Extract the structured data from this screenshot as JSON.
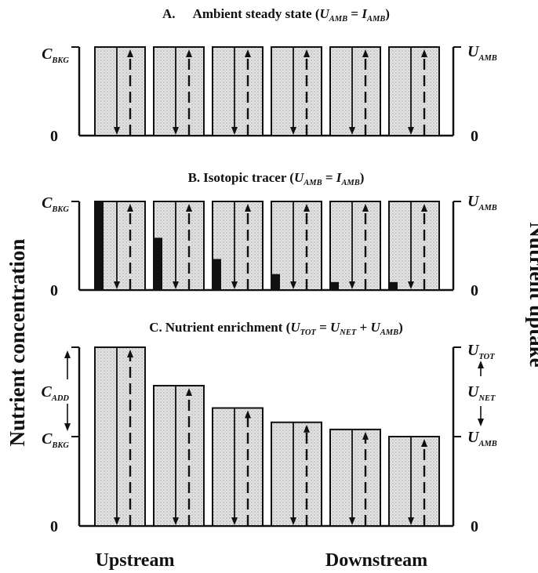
{
  "colors": {
    "bar_fill": "#dcdcdc",
    "ink": "#111111",
    "tracer": "#111111"
  },
  "icons": {
    "arrow": "arrow-up-icon / arrow-down-icon"
  },
  "panels": [
    {
      "title_prefix": "A.",
      "title_text": "Ambient steady state (",
      "eq": {
        "a": "U",
        "a_sub": "AMB",
        "op": " = ",
        "b": "I",
        "b_sub": "AMB",
        "close": ")"
      },
      "left_top": {
        "main": "C",
        "sub": "BKG"
      },
      "right_top": {
        "main": "U",
        "sub": "AMB"
      },
      "zero_left": "0",
      "zero_right": "0"
    },
    {
      "title_prefix": "B.",
      "title_text": "Isotopic tracer (",
      "eq": {
        "a": "U",
        "a_sub": "AMB",
        "op": " = ",
        "b": "I",
        "b_sub": "AMB",
        "close": ")"
      },
      "left_top": {
        "main": "C",
        "sub": "BKG"
      },
      "right_top": {
        "main": "U",
        "sub": "AMB"
      },
      "zero_left": "0",
      "zero_right": "0",
      "tracer_levels": [
        1.0,
        0.59,
        0.35,
        0.18,
        0.09,
        0.09
      ]
    },
    {
      "title_prefix": "C.",
      "title_text": "Nutrient enrichment (",
      "eq": {
        "a": "U",
        "a_sub": "TOT",
        "op": " = ",
        "b": "U",
        "b_sub": "NET",
        "op2": " + ",
        "c": "U",
        "c_sub": "AMB",
        "close": ")"
      },
      "left_mid": {
        "main": "C",
        "sub": "ADD"
      },
      "left_bkg": {
        "main": "C",
        "sub": "BKG"
      },
      "right_top": {
        "main": "U",
        "sub": "TOT"
      },
      "right_mid": {
        "main": "U",
        "sub": "NET"
      },
      "right_bkg": {
        "main": "U",
        "sub": "AMB"
      },
      "zero_left": "0",
      "zero_right": "0",
      "bar_levels": [
        2.0,
        1.57,
        1.32,
        1.16,
        1.08,
        1.0
      ]
    }
  ],
  "y_left_label": "Nutrient concentration",
  "y_right_label": "Nutrient uptake",
  "x_left_label": "Upstream",
  "x_right_label": "Downstream"
}
